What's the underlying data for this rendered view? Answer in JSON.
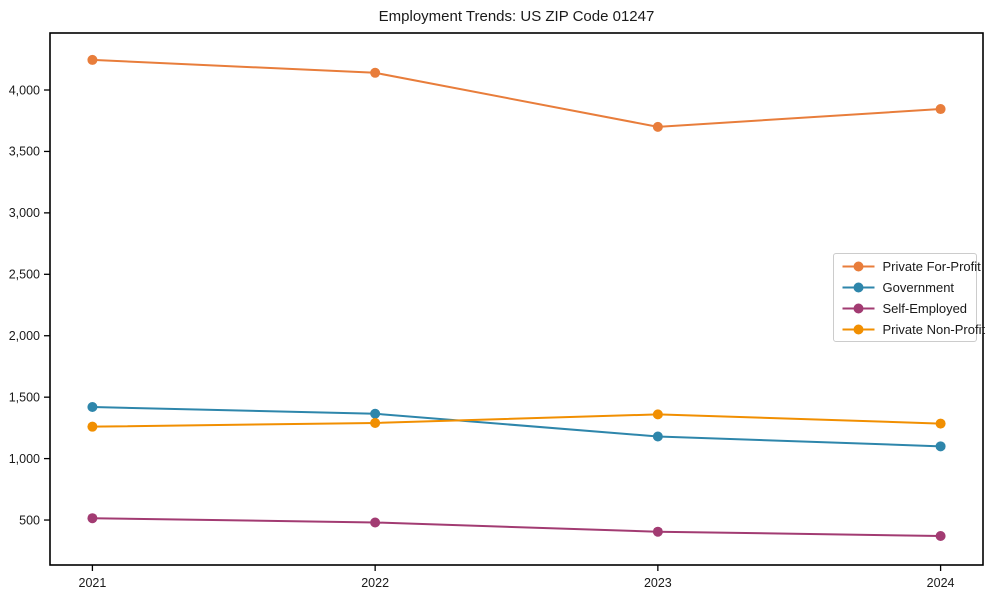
{
  "chart_data": {
    "type": "line",
    "title": "Employment Trends: US ZIP Code 01247",
    "xlabel": "",
    "ylabel": "",
    "x": [
      2021,
      2022,
      2023,
      2024
    ],
    "x_tick_labels": [
      "2021",
      "2022",
      "2023",
      "2024"
    ],
    "y_ticks": [
      500,
      1000,
      1500,
      2000,
      2500,
      3000,
      3500,
      4000
    ],
    "y_tick_labels": [
      "500",
      "1,000",
      "1,500",
      "2,000",
      "2,500",
      "3,000",
      "3,500",
      "4,000"
    ],
    "xlim": [
      2020.85,
      2024.15
    ],
    "ylim": [
      134,
      4464
    ],
    "grid": false,
    "legend_position": "center-right",
    "series": [
      {
        "name": "Private For-Profit",
        "color": "#E87D3B",
        "marker": "circle",
        "values": [
          4245,
          4140,
          3700,
          3845
        ]
      },
      {
        "name": "Government",
        "color": "#2E86AB",
        "marker": "circle",
        "values": [
          1420,
          1365,
          1180,
          1100
        ]
      },
      {
        "name": "Self-Employed",
        "color": "#A23B72",
        "marker": "circle",
        "values": [
          515,
          480,
          405,
          370
        ]
      },
      {
        "name": "Private Non-Profit",
        "color": "#F18F01",
        "marker": "circle",
        "values": [
          1260,
          1290,
          1360,
          1285
        ]
      }
    ],
    "colors": {
      "text": "#1a1a1a",
      "spine": "#000000",
      "legend_border": "#cccccc",
      "background": "#ffffff"
    }
  }
}
